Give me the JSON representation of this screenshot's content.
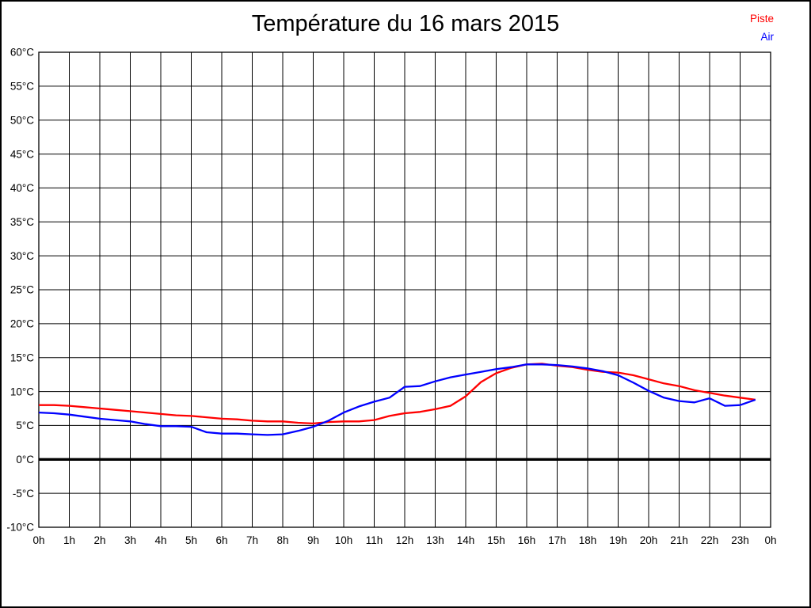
{
  "title": "Température du 16 mars 2015",
  "legend": {
    "items": [
      {
        "label": "Piste",
        "color": "#ff0000"
      },
      {
        "label": "Air",
        "color": "#0000ff"
      }
    ]
  },
  "colors": {
    "background": "#ffffff",
    "grid": "#000000",
    "frame": "#000000",
    "zero_line": "#000000",
    "tick_text": "#000000"
  },
  "chart_data": {
    "type": "line",
    "title": "Température du 16 mars 2015",
    "xlabel": "",
    "ylabel": "",
    "xlim": [
      0,
      24
    ],
    "ylim": [
      -10,
      60
    ],
    "grid": true,
    "legend_position": "top-right",
    "zero_line_value": 0,
    "x_tick_values": [
      0,
      1,
      2,
      3,
      4,
      5,
      6,
      7,
      8,
      9,
      10,
      11,
      12,
      13,
      14,
      15,
      16,
      17,
      18,
      19,
      20,
      21,
      22,
      23,
      24
    ],
    "x_tick_labels": [
      "0h",
      "1h",
      "2h",
      "3h",
      "4h",
      "5h",
      "6h",
      "7h",
      "8h",
      "9h",
      "10h",
      "11h",
      "12h",
      "13h",
      "14h",
      "15h",
      "16h",
      "17h",
      "18h",
      "19h",
      "20h",
      "21h",
      "22h",
      "23h",
      "0h"
    ],
    "y_tick_values": [
      60,
      55,
      50,
      45,
      40,
      35,
      30,
      25,
      20,
      15,
      10,
      5,
      0,
      -5,
      -10
    ],
    "y_tick_labels": [
      "60°C",
      "55°C",
      "50°C",
      "45°C",
      "40°C",
      "35°C",
      "30°C",
      "25°C",
      "20°C",
      "15°C",
      "10°C",
      "5°C",
      "0°C",
      "-5°C",
      "-10°C"
    ],
    "x_start": 0,
    "x_step": 0.5,
    "series": [
      {
        "name": "Piste",
        "color": "#ff0000",
        "values": [
          8.0,
          8.0,
          7.9,
          7.7,
          7.5,
          7.3,
          7.1,
          6.9,
          6.7,
          6.5,
          6.4,
          6.2,
          6.0,
          5.9,
          5.7,
          5.6,
          5.6,
          5.4,
          5.3,
          5.5,
          5.6,
          5.6,
          5.8,
          6.4,
          6.8,
          7.0,
          7.4,
          7.9,
          9.3,
          11.4,
          12.7,
          13.5,
          14.0,
          14.1,
          13.8,
          13.6,
          13.2,
          12.9,
          12.8,
          12.4,
          11.8,
          11.2,
          10.8,
          10.2,
          9.8,
          9.4,
          9.1,
          8.8
        ]
      },
      {
        "name": "Air",
        "color": "#0000ff",
        "values": [
          6.9,
          6.8,
          6.6,
          6.3,
          6.0,
          5.8,
          5.6,
          5.2,
          4.9,
          4.9,
          4.8,
          4.0,
          3.8,
          3.8,
          3.7,
          3.6,
          3.7,
          4.2,
          4.8,
          5.7,
          6.9,
          7.8,
          8.5,
          9.1,
          10.7,
          10.8,
          11.5,
          12.1,
          12.5,
          12.9,
          13.3,
          13.6,
          14.0,
          14.0,
          13.9,
          13.7,
          13.4,
          13.0,
          12.4,
          11.3,
          10.1,
          9.1,
          8.6,
          8.4,
          9.0,
          7.9,
          8.0,
          8.8
        ]
      }
    ]
  }
}
